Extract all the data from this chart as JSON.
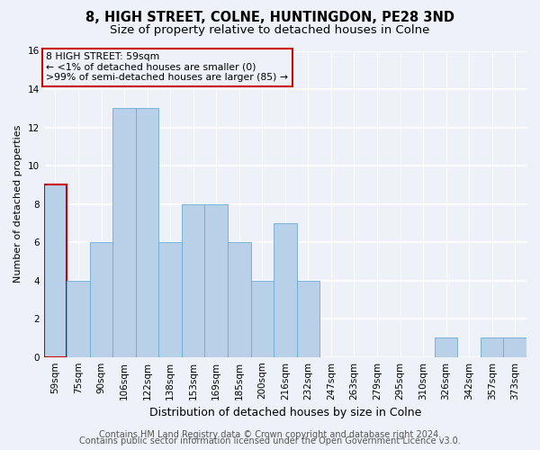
{
  "title": "8, HIGH STREET, COLNE, HUNTINGDON, PE28 3ND",
  "subtitle": "Size of property relative to detached houses in Colne",
  "xlabel": "Distribution of detached houses by size in Colne",
  "ylabel": "Number of detached properties",
  "categories": [
    "59sqm",
    "75sqm",
    "90sqm",
    "106sqm",
    "122sqm",
    "138sqm",
    "153sqm",
    "169sqm",
    "185sqm",
    "200sqm",
    "216sqm",
    "232sqm",
    "247sqm",
    "263sqm",
    "279sqm",
    "295sqm",
    "310sqm",
    "326sqm",
    "342sqm",
    "357sqm",
    "373sqm"
  ],
  "values": [
    9,
    4,
    6,
    13,
    13,
    6,
    8,
    8,
    6,
    4,
    7,
    4,
    0,
    0,
    0,
    0,
    0,
    1,
    0,
    1,
    1
  ],
  "bar_color": "#b8d0e8",
  "bar_edge_color": "#6aaad4",
  "annotation_box_edge": "#cc0000",
  "annotation_text_line1": "8 HIGH STREET: 59sqm",
  "annotation_text_line2": "← <1% of detached houses are smaller (0)",
  "annotation_text_line3": ">99% of semi-detached houses are larger (85) →",
  "highlight_bar_index": 0,
  "highlight_bar_edge_color": "#cc0000",
  "ylim": [
    0,
    16
  ],
  "yticks": [
    0,
    2,
    4,
    6,
    8,
    10,
    12,
    14,
    16
  ],
  "footer_line1": "Contains HM Land Registry data © Crown copyright and database right 2024.",
  "footer_line2": "Contains public sector information licensed under the Open Government Licence v3.0.",
  "background_color": "#eef2f8",
  "grid_color": "#ffffff",
  "title_fontsize": 10.5,
  "subtitle_fontsize": 9.5,
  "xlabel_fontsize": 9,
  "ylabel_fontsize": 8,
  "tick_fontsize": 7.5,
  "footer_fontsize": 7
}
